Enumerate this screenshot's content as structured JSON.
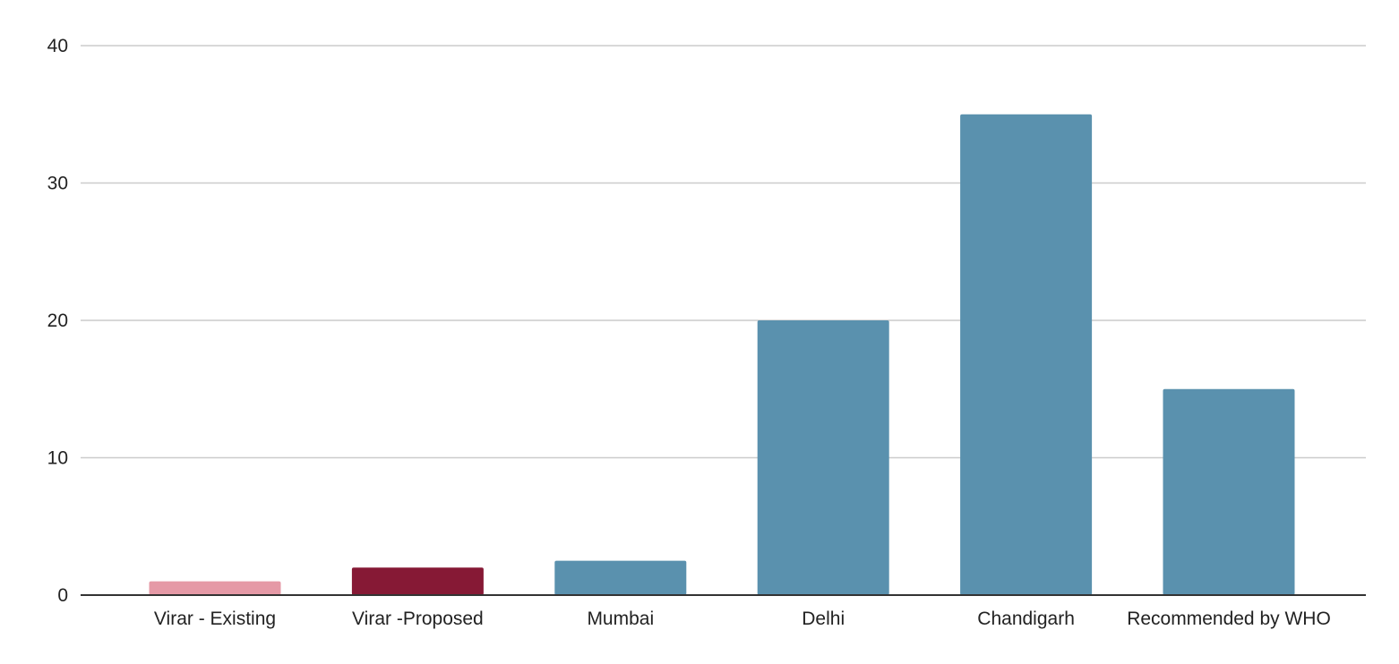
{
  "chart_data": {
    "type": "bar",
    "title": "",
    "xlabel": "",
    "ylabel": "",
    "categories": [
      "Virar - Existing",
      "Virar -Proposed",
      "Mumbai",
      "Delhi",
      "Chandigarh",
      "Recommended by WHO"
    ],
    "values": [
      1,
      2,
      2.5,
      20,
      35,
      15
    ],
    "bar_colors": [
      "#e599a6",
      "#861935",
      "#5a91ae",
      "#5a91ae",
      "#5a91ae",
      "#5a91ae"
    ],
    "ylim": [
      0,
      40
    ],
    "yticks": [
      0,
      10,
      20,
      30,
      40
    ],
    "grid": true,
    "legend": "none"
  }
}
